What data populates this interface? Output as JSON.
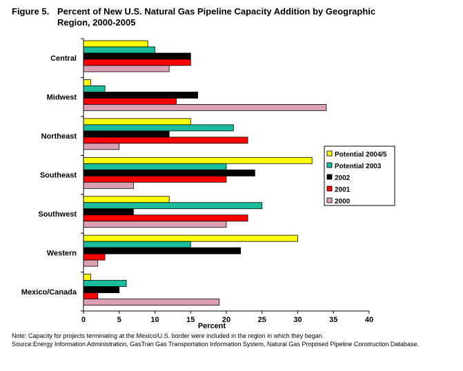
{
  "figure_number": "Figure 5.",
  "title_line1": "Percent of New U.S. Natural Gas Pipeline Capacity Addition by Geographic",
  "title_line2": "Region, 2000-2005",
  "notes": {
    "note": "Note: Capacity for projects terminating at the Mexico/U.S. border were included in the region in which they began.",
    "source": "Source:Energy Information Administration, GasTran Gas Transportation Information System, Natural Gas Proposed Pipeline Construction Database."
  },
  "chart_data": {
    "type": "bar",
    "orientation": "horizontal",
    "title": "Percent of New U.S. Natural Gas Pipeline Capacity Addition by Geographic Region, 2000-2005",
    "xlabel": "Percent",
    "ylabel": "",
    "xlim": [
      0,
      40
    ],
    "xticks": [
      0,
      5,
      10,
      15,
      20,
      25,
      30,
      35,
      40
    ],
    "grid": false,
    "legend": "right",
    "categories": [
      "Central",
      "Midwest",
      "Northeast",
      "Southeast",
      "Southwest",
      "Western",
      "Mexico/Canada"
    ],
    "series": [
      {
        "name": "Potential 2004/5",
        "color": "#ffff00",
        "values": [
          9,
          1,
          15,
          32,
          12,
          30,
          1
        ]
      },
      {
        "name": "Potential 2003",
        "color": "#1abc9c",
        "values": [
          10,
          3,
          21,
          20,
          25,
          15,
          6
        ]
      },
      {
        "name": "2002",
        "color": "#000000",
        "values": [
          15,
          16,
          12,
          24,
          7,
          22,
          5
        ]
      },
      {
        "name": "2001",
        "color": "#ff0000",
        "values": [
          15,
          13,
          23,
          20,
          23,
          3,
          2
        ]
      },
      {
        "name": "2000",
        "color": "#dca0b4",
        "values": [
          12,
          34,
          5,
          7,
          20,
          2,
          19
        ]
      }
    ]
  }
}
